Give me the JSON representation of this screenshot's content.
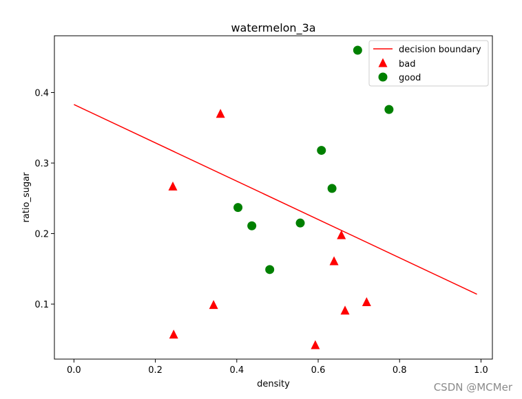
{
  "chart_data": {
    "type": "scatter",
    "title": "watermelon_3a",
    "xlabel": "density",
    "ylabel": "ratio_sugar",
    "xlim": [
      -0.048,
      1.028
    ],
    "ylim": [
      0.022,
      0.4805
    ],
    "xticks": [
      0.0,
      0.2,
      0.4,
      0.6,
      0.8,
      1.0
    ],
    "xtick_labels": [
      "0.0",
      "0.2",
      "0.4",
      "0.6",
      "0.8",
      "1.0"
    ],
    "yticks": [
      0.1,
      0.2,
      0.3,
      0.4
    ],
    "ytick_labels": [
      "0.1",
      "0.2",
      "0.3",
      "0.4"
    ],
    "grid": false,
    "legend_position": "top-right",
    "line": {
      "name": "decision boundary",
      "color": "#ff0000",
      "x": [
        0.0,
        0.99
      ],
      "y": [
        0.383,
        0.114
      ]
    },
    "series": [
      {
        "name": "bad",
        "marker": "triangle",
        "color": "#ff0000",
        "x": [
          0.243,
          0.245,
          0.343,
          0.36,
          0.593,
          0.639,
          0.657,
          0.666,
          0.719
        ],
        "y": [
          0.267,
          0.057,
          0.099,
          0.37,
          0.042,
          0.161,
          0.198,
          0.091,
          0.103
        ]
      },
      {
        "name": "good",
        "marker": "circle",
        "color": "#008000",
        "x": [
          0.403,
          0.437,
          0.481,
          0.556,
          0.608,
          0.634,
          0.697,
          0.774
        ],
        "y": [
          0.237,
          0.211,
          0.149,
          0.215,
          0.318,
          0.264,
          0.46,
          0.376
        ]
      }
    ]
  },
  "watermark": "CSDN @MCMer"
}
